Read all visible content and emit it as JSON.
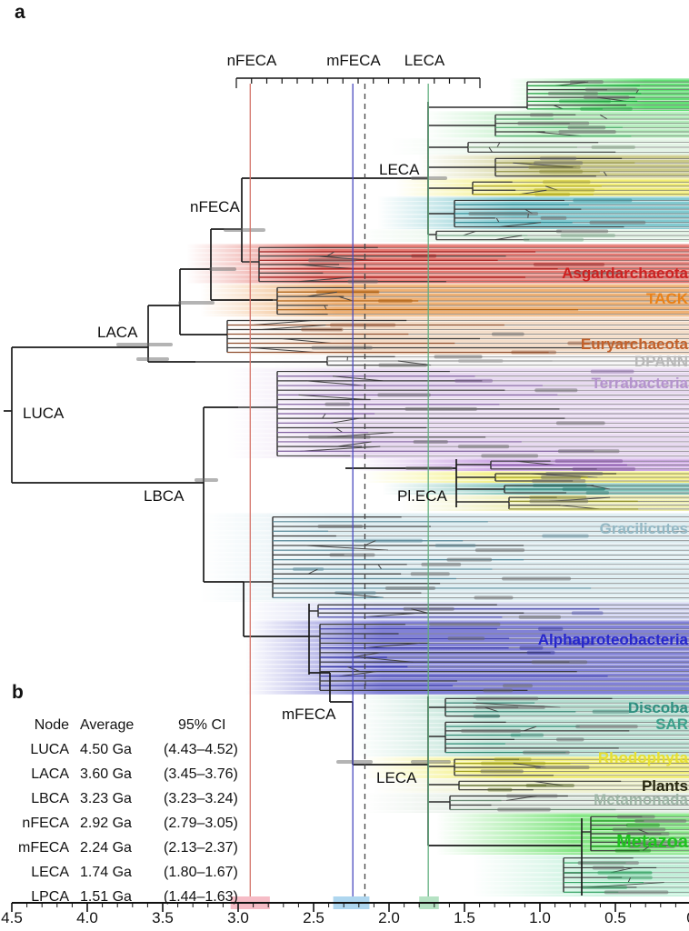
{
  "panels": {
    "a": "a",
    "b": "b"
  },
  "ruler_labels": [
    "nFECA",
    "mFECA",
    "LECA"
  ],
  "tree_node_labels": {
    "leca_top": "LECA",
    "nfeca": "nFECA",
    "laca": "LACA",
    "luca": "LUCA",
    "lbca": "LBCA",
    "pleca": "Pl.ECA",
    "mfeca": "mFECA",
    "leca_bottom": "LECA"
  },
  "table": {
    "headers": [
      "Node",
      "Average",
      "95% CI"
    ],
    "rows": [
      {
        "node": "LUCA",
        "average": "4.50 Ga",
        "ci": "(4.43–4.52)"
      },
      {
        "node": "LACA",
        "average": "3.60 Ga",
        "ci": "(3.45–3.76)"
      },
      {
        "node": "LBCA",
        "average": "3.23 Ga",
        "ci": "(3.23–3.24)"
      },
      {
        "node": "nFECA",
        "average": "2.92 Ga",
        "ci": "(2.79–3.05)"
      },
      {
        "node": "mFECA",
        "average": "2.24 Ga",
        "ci": "(2.13–2.37)"
      },
      {
        "node": "LECA",
        "average": "1.74 Ga",
        "ci": "(1.80–1.67)"
      },
      {
        "node": "LPCA",
        "average": "1.51 Ga",
        "ci": "(1.44–1.63)"
      }
    ]
  },
  "chart_data": {
    "type": "phylogenetic-tree-timeline",
    "x_axis": {
      "unit": "Ga",
      "range": [
        4.5,
        0
      ],
      "direction": "decreasing",
      "ticks": [
        "4.5",
        "4.0",
        "3.5",
        "3.0",
        "2.5",
        "2.0",
        "1.5",
        "1.0",
        "0.5",
        "0"
      ],
      "tick_values": [
        4.5,
        4.0,
        3.5,
        3.0,
        2.5,
        2.0,
        1.5,
        1.0,
        0.5,
        0
      ]
    },
    "node_ages": [
      {
        "node": "LUCA",
        "average_ga": 4.5,
        "ci_ga": [
          4.43,
          4.52
        ]
      },
      {
        "node": "LACA",
        "average_ga": 3.6,
        "ci_ga": [
          3.45,
          3.76
        ]
      },
      {
        "node": "LBCA",
        "average_ga": 3.23,
        "ci_ga": [
          3.23,
          3.24
        ]
      },
      {
        "node": "nFECA",
        "average_ga": 2.92,
        "ci_ga": [
          2.79,
          3.05
        ]
      },
      {
        "node": "mFECA",
        "average_ga": 2.24,
        "ci_ga": [
          2.13,
          2.37
        ]
      },
      {
        "node": "LECA",
        "average_ga": 1.74,
        "ci_ga": [
          1.8,
          1.67
        ]
      },
      {
        "node": "LPCA",
        "average_ga": 1.51,
        "ci_ga": [
          1.44,
          1.63
        ]
      }
    ],
    "reference_lines": [
      {
        "node": "nFECA",
        "x_ga": 2.92,
        "color": "#d4756a",
        "style": "solid"
      },
      {
        "node": "mFECA",
        "x_ga": 2.24,
        "color": "#4a4ac0",
        "style": "solid"
      },
      {
        "node": "",
        "x_ga": 2.16,
        "color": "#444444",
        "style": "dashed"
      },
      {
        "node": "LECA",
        "x_ga": 1.74,
        "color": "#5fae7d",
        "style": "solid"
      }
    ],
    "axis_ci_highlights": [
      {
        "node": "nFECA",
        "range_ga": [
          3.05,
          2.79
        ],
        "color": "#f6bcc6"
      },
      {
        "node": "mFECA",
        "range_ga": [
          2.37,
          2.13
        ],
        "color": "#aed6ef"
      },
      {
        "node": "LECA",
        "range_ga": [
          1.8,
          1.67
        ],
        "color": "#b5e2c3"
      }
    ],
    "clades": [
      {
        "name": "Asgardarchaeota",
        "label_color": "#cc2222",
        "band_color": "#e06058"
      },
      {
        "name": "TACK",
        "label_color": "#e8821a",
        "band_color": "#eca35c"
      },
      {
        "name": "Euryarchaeota",
        "label_color": "#c2602a",
        "band_color": "#f2d6bd"
      },
      {
        "name": "DPANN",
        "label_color": "#b8b8b8",
        "band_color": "#efefef"
      },
      {
        "name": "Terrabacteria",
        "label_color": "#b493cd",
        "band_color": "#e0cdec"
      },
      {
        "name": "Gracilicutes",
        "label_color": "#94b8c4",
        "band_color": "#d4e8ee"
      },
      {
        "name": "Alphaproteobacteria",
        "label_color": "#2626cc",
        "band_color": "#6b6bd0"
      },
      {
        "name": "Discoba",
        "label_color": "#2e8f80",
        "band_color": "#a2d6c4"
      },
      {
        "name": "SAR",
        "label_color": "#3ba08b",
        "band_color": "#aadaca"
      },
      {
        "name": "Rhodophyta",
        "label_color": "#e6e030",
        "band_color": "#f0ec62"
      },
      {
        "name": "Plants",
        "label_color": "#26260e",
        "band_color": "#e4e8b4"
      },
      {
        "name": "Metamonada",
        "label_color": "#9db5a5",
        "band_color": "#d2e2d4"
      },
      {
        "name": "Metazoa",
        "label_color": "#1fc31f",
        "band_color": "#70e270"
      }
    ]
  }
}
